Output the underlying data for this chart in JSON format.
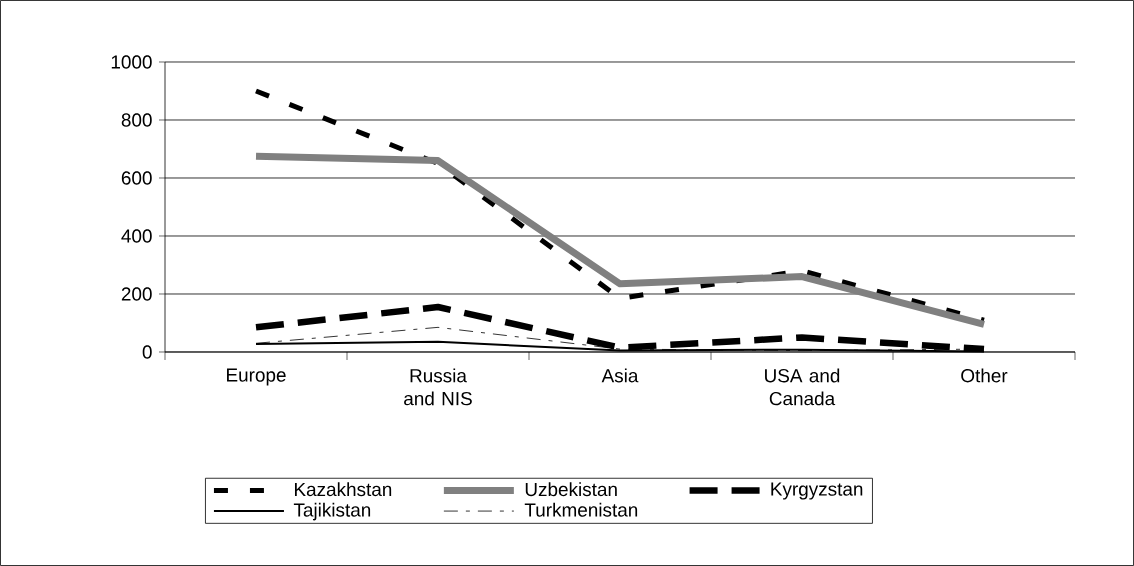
{
  "chart_data": {
    "type": "line",
    "categories": [
      "Europe",
      "Russia and NIS",
      "Asia",
      "USA and Canada",
      "Other"
    ],
    "series": [
      {
        "name": "Kazakhstan",
        "color": "#000000",
        "line_style": "dashed",
        "values": [
          900,
          650,
          185,
          280,
          110
        ]
      },
      {
        "name": "Uzbekistan",
        "color": "#808080",
        "line_style": "solid",
        "values": [
          675,
          660,
          235,
          260,
          95
        ]
      },
      {
        "name": "Kyrgyzstan",
        "color": "#000000",
        "line_style": "dashed",
        "values": [
          85,
          155,
          15,
          50,
          10
        ]
      },
      {
        "name": "Tajikistan",
        "color": "#000000",
        "line_style": "solid",
        "values": [
          28,
          35,
          5,
          8,
          2
        ]
      },
      {
        "name": "Turkmenistan",
        "color": "#000000",
        "line_style": "dashdot",
        "values": [
          30,
          85,
          10,
          5,
          10
        ]
      }
    ],
    "ylim": [
      0,
      1000
    ],
    "yticks": [
      0,
      200,
      400,
      600,
      800,
      1000
    ],
    "grid": "y",
    "legend": "bottom",
    "marker": "none"
  }
}
